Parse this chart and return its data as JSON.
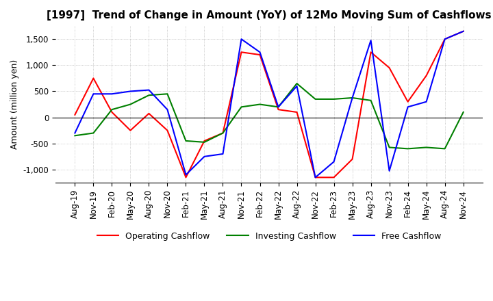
{
  "title": "[1997]  Trend of Change in Amount (YoY) of 12Mo Moving Sum of Cashflows",
  "ylabel": "Amount (million yen)",
  "ylim": [
    -1250,
    1750
  ],
  "yticks": [
    -1000,
    -500,
    0,
    500,
    1000,
    1500
  ],
  "x_labels": [
    "Aug-19",
    "Nov-19",
    "Feb-20",
    "May-20",
    "Aug-20",
    "Nov-20",
    "Feb-21",
    "May-21",
    "Aug-21",
    "Nov-21",
    "Feb-22",
    "May-22",
    "Aug-22",
    "Nov-22",
    "Feb-23",
    "May-23",
    "Aug-23",
    "Nov-23",
    "Feb-24",
    "May-24",
    "Aug-24",
    "Nov-24"
  ],
  "operating": [
    50,
    750,
    100,
    -250,
    75,
    -250,
    -1150,
    -450,
    -300,
    1250,
    1200,
    150,
    100,
    -1150,
    -1150,
    -800,
    1250,
    950,
    300,
    800,
    1500,
    1650
  ],
  "investing": [
    -350,
    -300,
    150,
    250,
    425,
    450,
    -450,
    -475,
    -300,
    200,
    250,
    200,
    650,
    350,
    350,
    375,
    325,
    -575,
    -600,
    -575,
    -600,
    100
  ],
  "free": [
    -300,
    450,
    450,
    500,
    525,
    150,
    -1100,
    -750,
    -700,
    1500,
    1250,
    200,
    600,
    -1150,
    -850,
    375,
    1475,
    -1025,
    200,
    300,
    1500,
    1650
  ],
  "operating_color": "#ff0000",
  "investing_color": "#008000",
  "free_color": "#0000ff",
  "background_color": "#ffffff",
  "grid_color": "#aaaaaa",
  "title_fontsize": 11,
  "label_fontsize": 9,
  "tick_fontsize": 8.5
}
